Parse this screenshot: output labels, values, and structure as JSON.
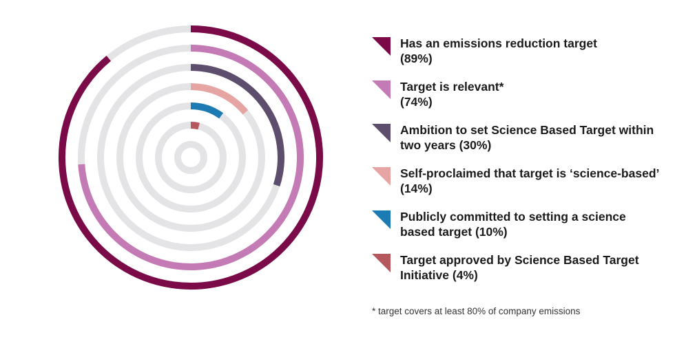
{
  "chart_data": {
    "type": "radial-bar",
    "max": 100,
    "track_color": "#e4e4e6",
    "series": [
      {
        "name": "Has an emissions reduction target",
        "value": 89,
        "label": "(89%)",
        "color": "#7a0a48"
      },
      {
        "name": "Target is relevant*",
        "value": 74,
        "label": "(74%)",
        "color": "#c47ab4"
      },
      {
        "name": "Ambition to set Science Based Target within two years",
        "value": 30,
        "label": "(30%)",
        "color": "#5d4e6d"
      },
      {
        "name": "Self-proclaimed that target is ‘science-based’",
        "value": 14,
        "label": "(14%)",
        "color": "#e6a4a2"
      },
      {
        "name": "Publicly committed to setting a science based target",
        "value": 10,
        "label": "(10%)",
        "color": "#1d7bb3"
      },
      {
        "name": "Target approved by Science Based Target Initiative",
        "value": 4,
        "label": "(4%)",
        "color": "#b5585d"
      }
    ],
    "footnote": "*  target covers at least 80% of company emissions"
  }
}
